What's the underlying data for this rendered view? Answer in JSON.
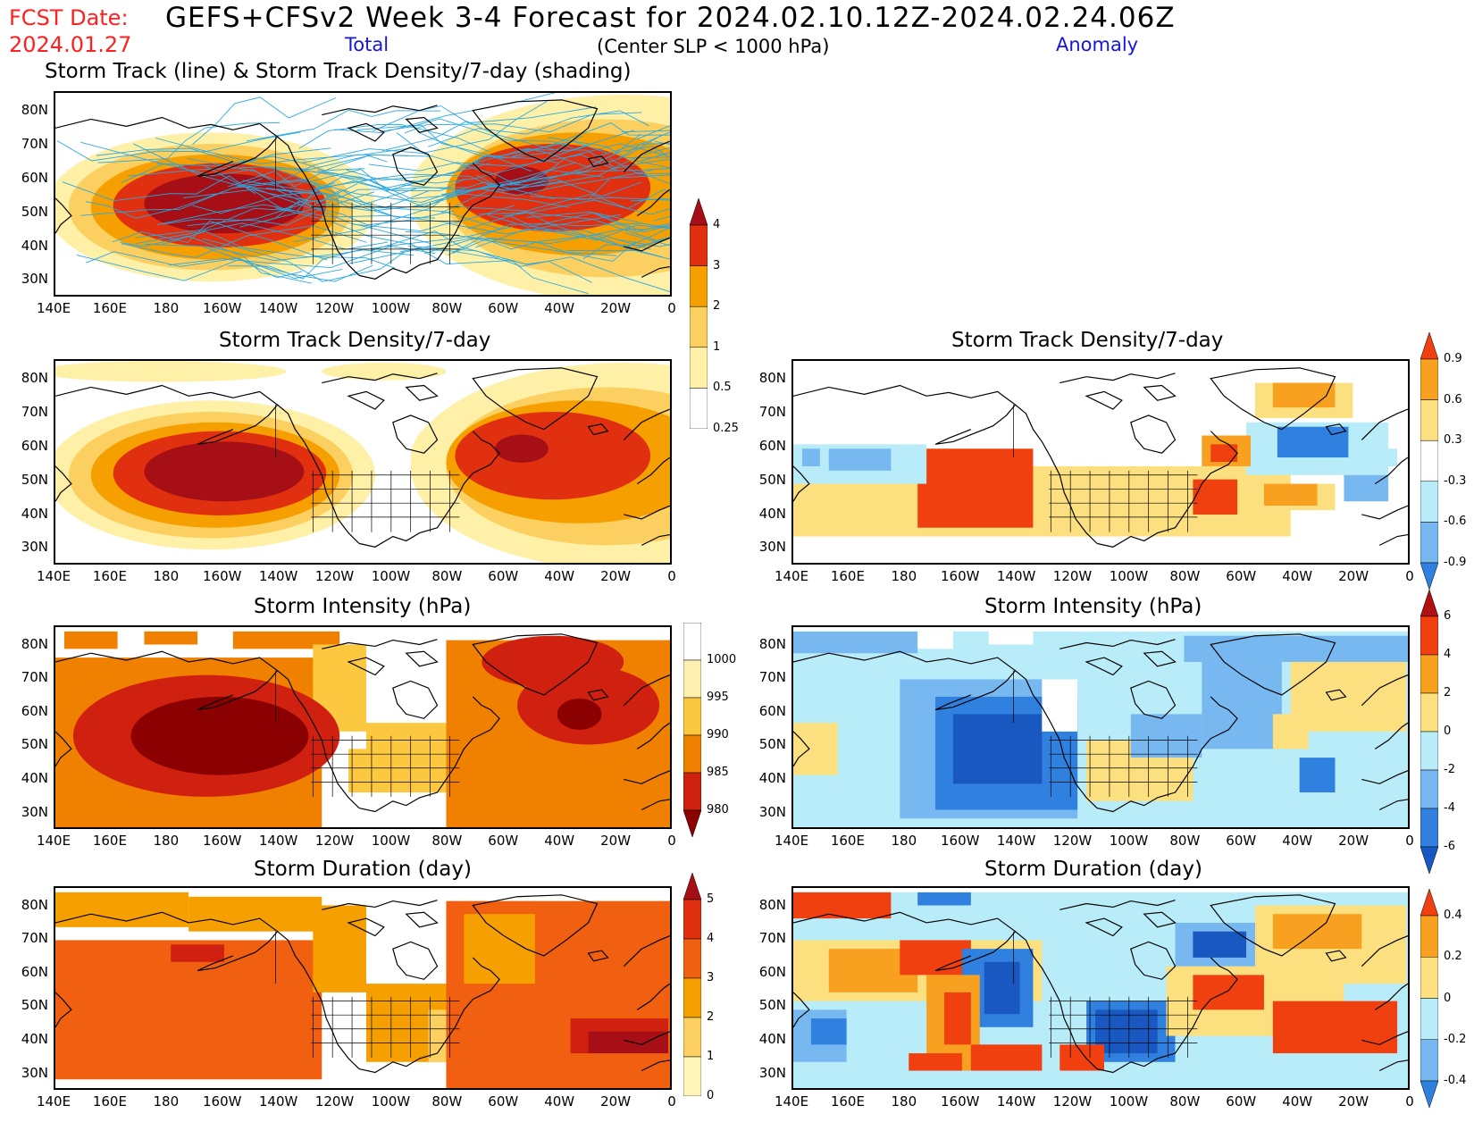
{
  "header": {
    "fcst_label": "FCST Date:",
    "fcst_date": "2024.01.27",
    "title": "GEFS+CFSv2 Week 3-4 Forecast for 2024.02.10.12Z-2024.02.24.06Z",
    "total_label": "Total",
    "subtitle": "(Center SLP < 1000 hPa)",
    "anomaly_label": "Anomaly"
  },
  "axes": {
    "lat_labels": [
      "80N",
      "70N",
      "60N",
      "50N",
      "40N",
      "30N"
    ],
    "lon_labels": [
      "140E",
      "160E",
      "180",
      "160W",
      "140W",
      "120W",
      "100W",
      "80W",
      "60W",
      "40W",
      "20W",
      "0"
    ]
  },
  "panels": {
    "total_track": {
      "title": "Storm Track (line) & Storm Track Density/7-day (shading)"
    },
    "total_density": {
      "title": "Storm Track Density/7-day"
    },
    "total_intensity": {
      "title": "Storm Intensity (hPa)"
    },
    "total_duration": {
      "title": "Storm Duration (day)"
    },
    "anom_density": {
      "title": "Storm Track Density/7-day"
    },
    "anom_intensity": {
      "title": "Storm Intensity (hPa)"
    },
    "anom_duration": {
      "title": "Storm Duration (day)"
    }
  },
  "colorbars": {
    "density_total": {
      "labels": [
        "4",
        "3",
        "2",
        "1",
        "0.5",
        "0.25"
      ],
      "colors": [
        "#a50f15",
        "#e03010",
        "#f5a000",
        "#fbd060",
        "#fff0a8",
        "#ffffff"
      ]
    },
    "intensity_total": {
      "labels": [
        "1000",
        "995",
        "990",
        "985",
        "980"
      ],
      "colors": [
        "#ffffff",
        "#fff0b0",
        "#fbc840",
        "#f08000",
        "#d02010",
        "#8b0000"
      ]
    },
    "duration_total": {
      "labels": [
        "5",
        "4",
        "3",
        "2",
        "1",
        "0"
      ],
      "colors": [
        "#a50f15",
        "#e03010",
        "#f06010",
        "#f5a000",
        "#fbd060",
        "#fff7b8"
      ]
    },
    "density_anom": {
      "labels": [
        "0.9",
        "0.6",
        "0.3",
        "-0.3",
        "-0.6",
        "-0.9"
      ],
      "colors": [
        "#f04010",
        "#f8a020",
        "#fce080",
        "#ffffff",
        "#b8ecf8",
        "#78b8f0",
        "#3080e0"
      ]
    },
    "intensity_anom": {
      "labels": [
        "6",
        "4",
        "2",
        "0",
        "-2",
        "-4",
        "-6"
      ],
      "colors": [
        "#b01010",
        "#f04010",
        "#f8a020",
        "#fce080",
        "#b8ecf8",
        "#78b8f0",
        "#3080e0",
        "#1858c0"
      ]
    },
    "duration_anom": {
      "labels": [
        "0.4",
        "0.2",
        "0",
        "-0.2",
        "-0.4"
      ],
      "colors": [
        "#f04010",
        "#f8a020",
        "#fce080",
        "#b8ecf8",
        "#78b8f0",
        "#3080e0"
      ]
    }
  },
  "palette": {
    "coast": "#000000",
    "track_line": "#2aa8e0"
  }
}
